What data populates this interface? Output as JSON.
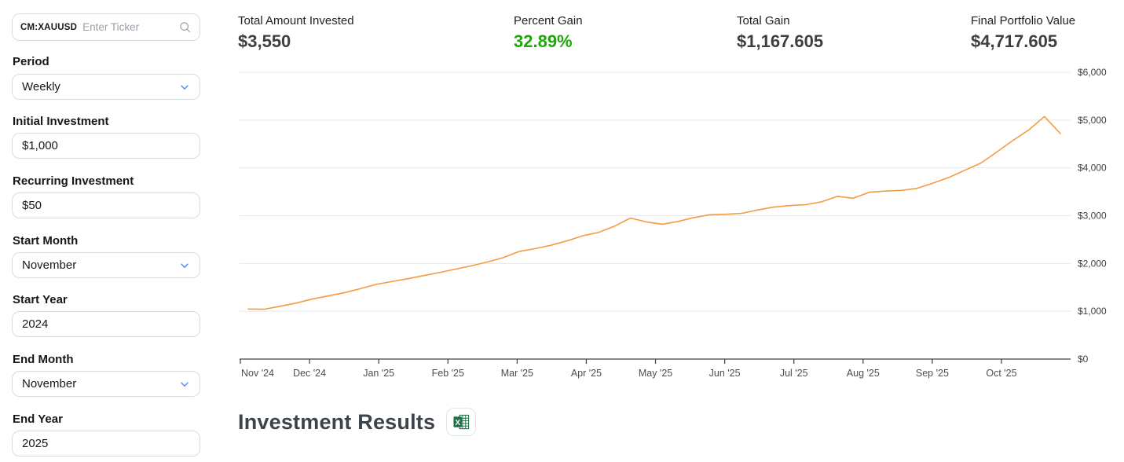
{
  "ticker_search": {
    "value": "CM:XAUUSD",
    "placeholder": "Enter Ticker"
  },
  "sidebar": {
    "fields": [
      {
        "label": "Period",
        "value": "Weekly",
        "type": "select"
      },
      {
        "label": "Initial Investment",
        "value": "$1,000",
        "type": "input"
      },
      {
        "label": "Recurring Investment",
        "value": "$50",
        "type": "input"
      },
      {
        "label": "Start Month",
        "value": "November",
        "type": "select"
      },
      {
        "label": "Start Year",
        "value": "2024",
        "type": "input"
      },
      {
        "label": "End Month",
        "value": "November",
        "type": "select"
      },
      {
        "label": "End Year",
        "value": "2025",
        "type": "input"
      }
    ]
  },
  "stats": [
    {
      "label": "Total Amount Invested",
      "value": "$3,550",
      "color": "#3c4043"
    },
    {
      "label": "Percent Gain",
      "value": "32.89%",
      "color": "#1ea70b"
    },
    {
      "label": "Total Gain",
      "value": "$1,167.605",
      "color": "#3c4043"
    },
    {
      "label": "Final Portfolio Value",
      "value": "$4,717.605",
      "color": "#3c4043"
    }
  ],
  "results_section": {
    "title": "Investment Results",
    "export_icon": "excel-icon"
  },
  "chart_data": {
    "type": "line",
    "title": "",
    "xlabel": "",
    "ylabel": "",
    "x_unit": "weekly portfolio value, Nov 2024 - Nov 2025",
    "x_tick_labels": [
      "Nov '24",
      "Dec '24",
      "Jan '25",
      "Feb '25",
      "Mar '25",
      "Apr '25",
      "May '25",
      "Jun '25",
      "Jul '25",
      "Aug '25",
      "Sep '25",
      "Oct '25"
    ],
    "ylim": [
      0,
      6000
    ],
    "y_tick_step": 1000,
    "y_tick_prefix": "$",
    "y_axis_side": "right",
    "grid": "horizontal",
    "legend": "none",
    "line_color": "#f49b42",
    "series": [
      {
        "name": "Portfolio Value",
        "color": "#f49b42",
        "values": [
          1047,
          1043,
          1105,
          1170,
          1255,
          1320,
          1385,
          1470,
          1560,
          1620,
          1680,
          1745,
          1810,
          1880,
          1950,
          2030,
          2120,
          2250,
          2310,
          2380,
          2470,
          2580,
          2650,
          2780,
          2950,
          2870,
          2820,
          2880,
          2960,
          3020,
          3030,
          3050,
          3120,
          3180,
          3210,
          3230,
          3290,
          3405,
          3365,
          3490,
          3515,
          3530,
          3570,
          3680,
          3800,
          3950,
          4100,
          4330,
          4570,
          4790,
          5075,
          4717.605
        ]
      }
    ]
  }
}
